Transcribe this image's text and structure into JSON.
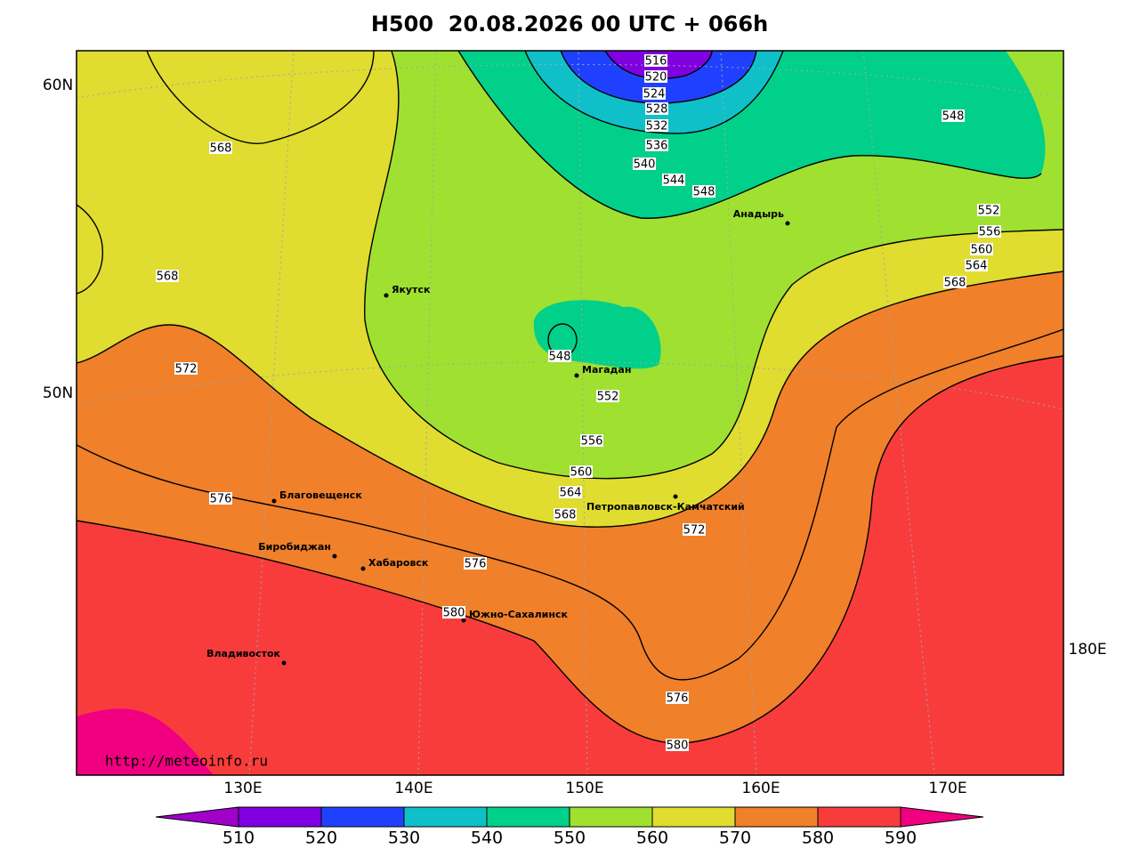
{
  "title": "H500  20.08.2026 00 UTC + 066h",
  "url": "http://meteoinfo.ru",
  "latitude_labels": [
    "60N",
    "50N"
  ],
  "longitude_labels": [
    "130E",
    "140E",
    "150E",
    "160E",
    "170E",
    "180E"
  ],
  "cities": [
    "Якутск",
    "Магадан",
    "Анадырь",
    "Благовещенск",
    "Биробиджан",
    "Хабаровск",
    "Южно-Сахалинск",
    "Владивосток",
    "Петропавловск-Камчатский"
  ],
  "contour_labels": [
    516,
    520,
    524,
    528,
    532,
    536,
    540,
    544,
    548,
    548,
    552,
    556,
    560,
    564,
    568,
    568,
    568,
    572,
    548,
    552,
    556,
    560,
    564,
    568,
    572,
    576,
    576,
    580,
    576,
    580
  ],
  "colorbar": {
    "ticks": [
      510,
      520,
      530,
      540,
      550,
      560,
      570,
      580,
      590
    ],
    "colors": [
      "#a000c8",
      "#8000e0",
      "#2040ff",
      "#10c0c8",
      "#00d08a",
      "#a0e030",
      "#e0dc30",
      "#f0802a",
      "#f83c3c",
      "#f00080"
    ]
  }
}
